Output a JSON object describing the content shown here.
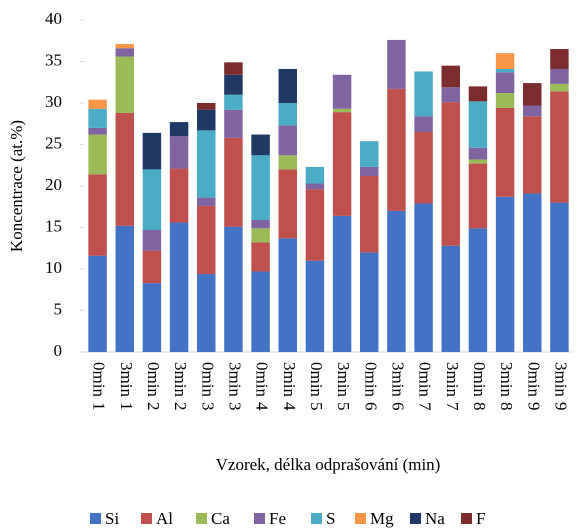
{
  "chart_data": {
    "type": "stacked_bar",
    "x_label": "Vzorek, délka odprašování (min)",
    "y_label": "Koncentrace (at.%)",
    "samples": [
      "1",
      "1",
      "2",
      "2",
      "3",
      "3",
      "4",
      "4",
      "5",
      "5",
      "6",
      "6",
      "7",
      "7",
      "8",
      "8",
      "9",
      "9"
    ],
    "categories": [
      "0min",
      "3min",
      "0min",
      "3min",
      "0min",
      "3min",
      "0min",
      "3min",
      "0min",
      "3min",
      "0min",
      "3min",
      "0min",
      "3min",
      "0min",
      "3min",
      "0min",
      "3min"
    ],
    "ylim": [
      0,
      40
    ],
    "yticks": [
      0,
      5,
      10,
      15,
      20,
      25,
      30,
      35,
      40
    ],
    "series": [
      {
        "name": "Si",
        "color": "#4472c4",
        "values": [
          11.6,
          15.2,
          8.3,
          15.6,
          9.4,
          15.1,
          9.7,
          13.7,
          11.0,
          16.4,
          12.0,
          17.0,
          17.9,
          12.8,
          14.9,
          18.7,
          19.1,
          18.0
        ]
      },
      {
        "name": "Al",
        "color": "#c0504d",
        "values": [
          9.8,
          13.6,
          3.9,
          6.5,
          8.2,
          10.7,
          3.5,
          8.3,
          8.6,
          12.5,
          9.2,
          14.7,
          8.6,
          17.3,
          7.8,
          10.7,
          9.3,
          13.4
        ]
      },
      {
        "name": "Ca",
        "color": "#9bbb59",
        "values": [
          4.8,
          6.8,
          0,
          0,
          0,
          0,
          1.7,
          1.7,
          0,
          0.4,
          0,
          0,
          0,
          0,
          0.5,
          1.8,
          0,
          0.9
        ]
      },
      {
        "name": "Fe",
        "color": "#8064a2",
        "values": [
          0.8,
          1.0,
          2.5,
          3.9,
          1.0,
          3.4,
          1.0,
          3.6,
          0.7,
          4.1,
          1.1,
          5.9,
          1.9,
          1.8,
          1.4,
          2.5,
          1.3,
          1.8
        ]
      },
      {
        "name": "S",
        "color": "#4bacc6",
        "values": [
          2.3,
          0,
          7.3,
          0,
          8.1,
          1.8,
          7.8,
          2.7,
          2.0,
          0,
          3.1,
          0,
          5.4,
          0,
          5.6,
          0.4,
          0,
          0
        ]
      },
      {
        "name": "Mg",
        "color": "#f79646",
        "values": [
          1.1,
          0.5,
          0,
          0,
          0,
          0,
          0,
          0,
          0,
          0,
          0,
          0,
          0,
          0,
          0,
          1.9,
          0,
          0
        ]
      },
      {
        "name": "Na",
        "color": "#1f3864",
        "values": [
          0,
          0,
          4.4,
          1.7,
          2.5,
          2.4,
          2.5,
          4.1,
          0,
          0,
          0,
          0,
          0,
          0,
          0,
          0,
          0,
          0
        ]
      },
      {
        "name": "F",
        "color": "#7b2c2c",
        "values": [
          0,
          0,
          0,
          0,
          0.8,
          1.5,
          0,
          0,
          0,
          0,
          0,
          0,
          0,
          2.6,
          1.8,
          0,
          2.7,
          2.4
        ]
      }
    ]
  }
}
